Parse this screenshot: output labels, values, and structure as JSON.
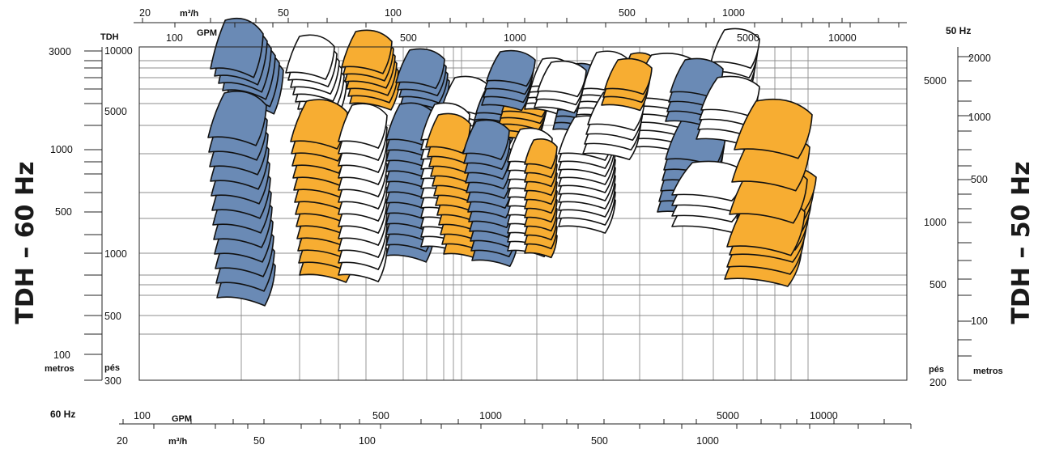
{
  "chart_data": {
    "type": "other",
    "description_kind": "pump performance coverage map (log-log)",
    "colors": {
      "blue": "#6a8ab5",
      "orange": "#f7ad32",
      "white": "#ffffff",
      "grid": "#8c8c8c"
    },
    "left_labels": {
      "hz_side": "TDH – 60 Hz",
      "head_title": "TDH",
      "metros_label": "metros",
      "pes_label": "pés",
      "metros_ticks": [
        "3000",
        "1000",
        "500",
        "100"
      ],
      "pes_ticks": [
        "10000",
        "5000",
        "1000",
        "500",
        "300"
      ]
    },
    "right_labels": {
      "hz_side": "TDH – 50 Hz",
      "hz_title": "50 Hz",
      "metros_label": "metros",
      "pes_label": "pés",
      "metros_ticks": [
        "2000",
        "1000",
        "500",
        "100"
      ],
      "pes_ticks": [
        "5000",
        "1000",
        "500",
        "200"
      ]
    },
    "top_axis": {
      "m3h_label": "m³/h",
      "gpm_label": "GPM",
      "m3h_ticks": [
        "20",
        "50",
        "100",
        "500",
        "1000"
      ],
      "gpm_ticks": [
        "100",
        "500",
        "1000",
        "5000",
        "10000"
      ]
    },
    "bottom_axis": {
      "hz_title": "60 Hz",
      "gpm_label": "GPM",
      "m3h_label": "m³/h",
      "gpm_ticks": [
        "100",
        "500",
        "1000",
        "5000",
        "10000"
      ],
      "m3h_ticks": [
        "20",
        "50",
        "100",
        "500",
        "1000"
      ]
    },
    "coverage_groups": [
      {
        "color": "blue",
        "count": 6
      },
      {
        "color": "white",
        "count": 6
      },
      {
        "color": "orange",
        "count": 6
      },
      {
        "color": "blue",
        "count": 5
      },
      {
        "color": "white",
        "count": 5
      },
      {
        "color": "blue",
        "count": 5
      },
      {
        "color": "orange",
        "count": 5
      },
      {
        "color": "white",
        "count": 5
      },
      {
        "color": "blue",
        "count": 6
      },
      {
        "color": "white",
        "count": 6
      },
      {
        "color": "orange",
        "count": 6
      },
      {
        "color": "white",
        "count": 7
      },
      {
        "color": "blue",
        "count": 12
      },
      {
        "color": "orange",
        "count": 12
      },
      {
        "color": "white",
        "count": 12
      },
      {
        "color": "blue",
        "count": 12
      },
      {
        "color": "white",
        "count": 12
      },
      {
        "color": "orange",
        "count": 12
      },
      {
        "color": "blue",
        "count": 12
      },
      {
        "color": "white",
        "count": 11
      },
      {
        "color": "orange",
        "count": 11
      },
      {
        "color": "white",
        "count": 10
      },
      {
        "color": "blue",
        "count": 6
      },
      {
        "color": "white",
        "count": 4
      },
      {
        "color": "orange",
        "count": 7
      },
      {
        "color": "white",
        "count": 5
      },
      {
        "color": "blue",
        "count": 4
      },
      {
        "color": "white",
        "count": 4
      },
      {
        "color": "orange",
        "count": 4
      },
      {
        "color": "white",
        "count": 4
      },
      {
        "color": "blue",
        "count": 4
      },
      {
        "color": "white",
        "count": 3
      },
      {
        "color": "orange",
        "count": 3
      }
    ]
  }
}
